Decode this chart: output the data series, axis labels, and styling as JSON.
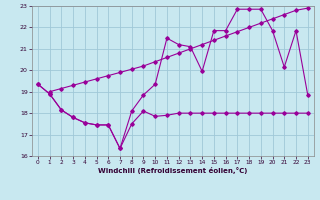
{
  "xlabel": "Windchill (Refroidissement éolien,°C)",
  "bg_color": "#c8e8f0",
  "grid_color": "#a0c8d8",
  "line_color": "#990099",
  "xlim": [
    -0.5,
    23.5
  ],
  "ylim": [
    16,
    23
  ],
  "yticks": [
    16,
    17,
    18,
    19,
    20,
    21,
    22,
    23
  ],
  "xticks": [
    0,
    1,
    2,
    3,
    4,
    5,
    6,
    7,
    8,
    9,
    10,
    11,
    12,
    13,
    14,
    15,
    16,
    17,
    18,
    19,
    20,
    21,
    22,
    23
  ],
  "line1_x": [
    0,
    1,
    2,
    3,
    4,
    5,
    6,
    7,
    8,
    9,
    10,
    11,
    12,
    13,
    14,
    15,
    16,
    17,
    18,
    19,
    20,
    21,
    22,
    23
  ],
  "line1_y": [
    19.35,
    18.9,
    18.15,
    17.8,
    17.55,
    17.45,
    17.45,
    16.35,
    17.5,
    18.1,
    17.85,
    17.9,
    18.0,
    18.0,
    18.0,
    18.0,
    18.0,
    18.0,
    18.0,
    18.0,
    18.0,
    18.0,
    18.0,
    18.0
  ],
  "line2_x": [
    1,
    2,
    3,
    4,
    5,
    6,
    7,
    8,
    9,
    10,
    11,
    12,
    13,
    14,
    15,
    16,
    17,
    18,
    19,
    20,
    21,
    22,
    23
  ],
  "line2_y": [
    19.0,
    19.15,
    19.3,
    19.45,
    19.6,
    19.75,
    19.9,
    20.05,
    20.2,
    20.4,
    20.6,
    20.8,
    21.0,
    21.2,
    21.4,
    21.6,
    21.8,
    22.0,
    22.2,
    22.4,
    22.6,
    22.8,
    22.9
  ],
  "line3_x": [
    0,
    1,
    2,
    3,
    4,
    5,
    6,
    7,
    8,
    9,
    10,
    11,
    12,
    13,
    14,
    15,
    16,
    17,
    18,
    19,
    20,
    21,
    22,
    23
  ],
  "line3_y": [
    19.35,
    18.9,
    18.15,
    17.8,
    17.55,
    17.45,
    17.45,
    16.35,
    18.1,
    18.85,
    19.35,
    21.5,
    21.2,
    21.1,
    19.95,
    21.85,
    21.85,
    22.85,
    22.85,
    22.85,
    21.85,
    20.15,
    21.85,
    18.85
  ]
}
